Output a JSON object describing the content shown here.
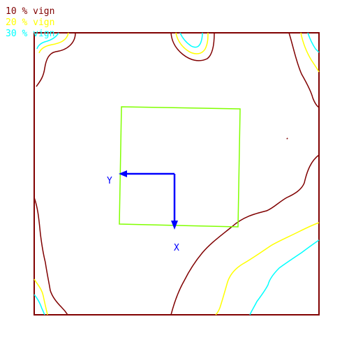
{
  "legend": {
    "items": [
      {
        "label": "10 % vign",
        "color": "#800000"
      },
      {
        "label": "20 % vign",
        "color": "#ffff00"
      },
      {
        "label": "30 % vign",
        "color": "#00ffff"
      }
    ]
  },
  "frame": {
    "color": "#800000"
  },
  "roi": {
    "color": "#80ff00"
  },
  "axes": {
    "color": "#0000ff",
    "y_label": "Y",
    "x_label": "X"
  }
}
